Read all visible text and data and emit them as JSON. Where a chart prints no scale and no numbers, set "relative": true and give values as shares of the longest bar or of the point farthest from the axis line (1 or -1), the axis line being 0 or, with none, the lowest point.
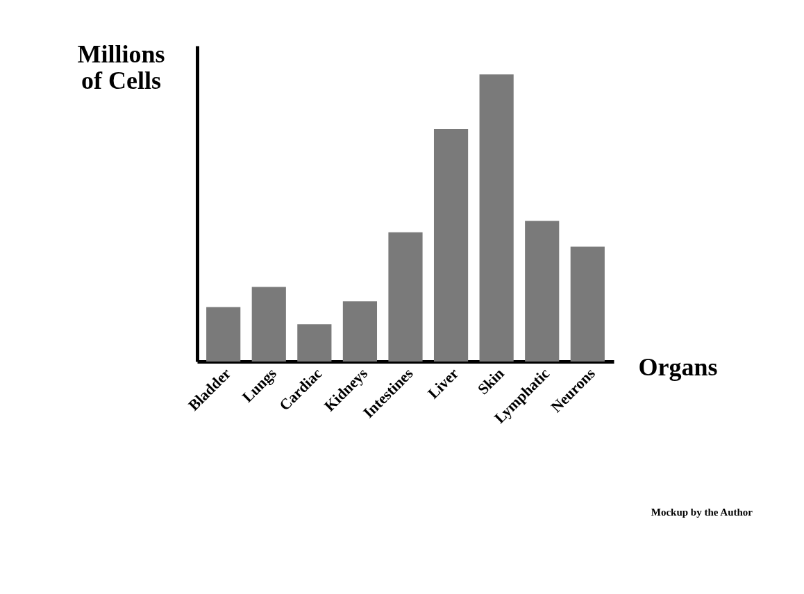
{
  "chart_data": {
    "type": "bar",
    "relative": true,
    "xlabel": "Organs",
    "ylabel": "Millions of Cells",
    "categories": [
      "Bladder",
      "Lungs",
      "Cardiac",
      "Kidneys",
      "Intestines",
      "Liver",
      "Skin",
      "Lymphatic",
      "Neurons"
    ],
    "values": [
      0.19,
      0.26,
      0.13,
      0.21,
      0.45,
      0.81,
      1,
      0.49,
      0.4
    ],
    "color": "#7a7a7a",
    "grid": false,
    "annotations": [
      "Mockup by the Author"
    ]
  }
}
